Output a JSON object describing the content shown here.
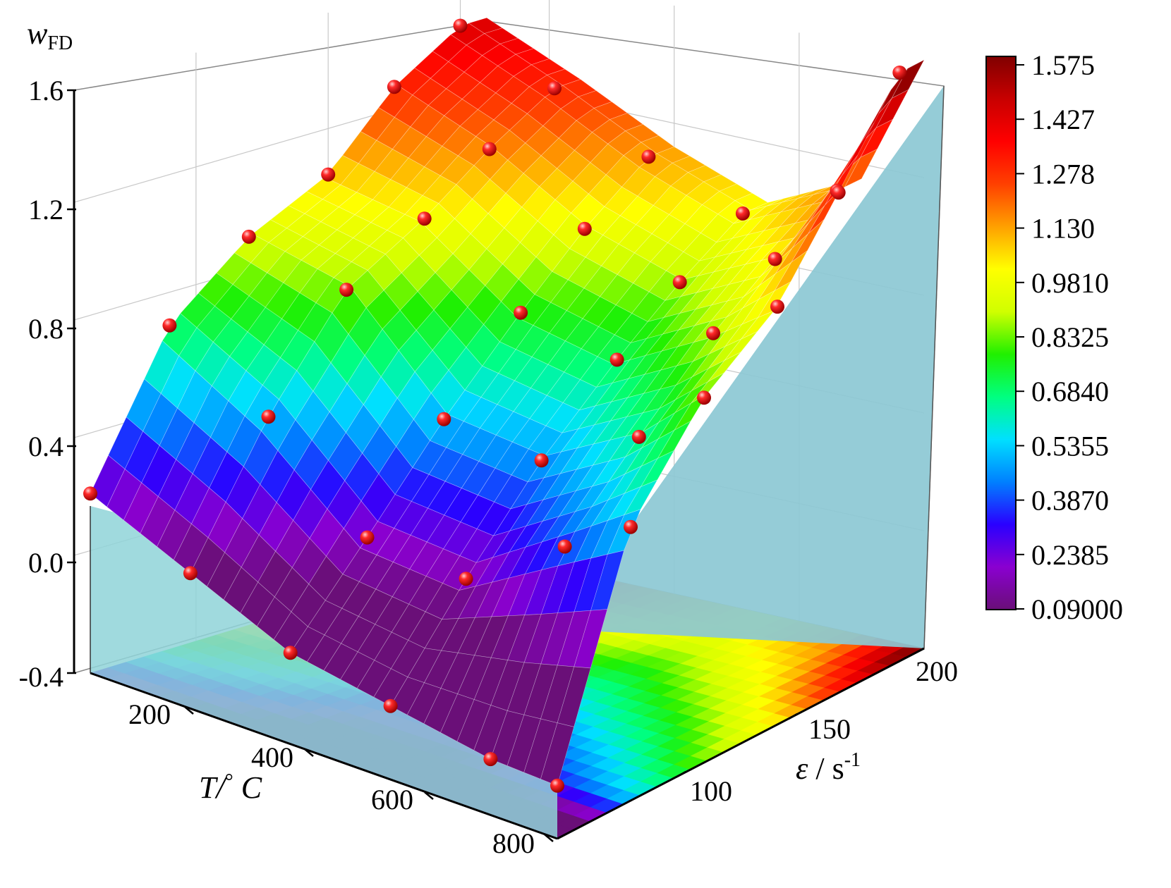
{
  "chart_data": {
    "type": "surface3d",
    "z_axis": {
      "label_main": "w",
      "label_sub": "FD",
      "ticks": [
        "1.6",
        "1.2",
        "0.8",
        "0.4",
        "0.0",
        "-0.4"
      ],
      "range": [
        -0.4,
        1.6
      ]
    },
    "x_axis": {
      "label_main": "T/",
      "label_degree": "°",
      "label_unit": " C",
      "ticks": [
        "200",
        "400",
        "600",
        "800"
      ],
      "range": [
        100,
        800
      ]
    },
    "y_axis": {
      "label_main": "ε",
      "label_unit": " / s",
      "label_sup": "-1",
      "ticks": [
        "100",
        "150",
        "200"
      ],
      "range": [
        60,
        210
      ]
    },
    "colorbar": {
      "labels": [
        "1.575",
        "1.427",
        "1.278",
        "1.130",
        "0.9810",
        "0.8325",
        "0.6840",
        "0.5355",
        "0.3870",
        "0.2385",
        "0.09000"
      ],
      "min": 0.09,
      "max": 1.575,
      "colors": [
        "#6a0f78",
        "#8a00d0",
        "#2a00ff",
        "#0080ff",
        "#00e0ff",
        "#00ff80",
        "#20f000",
        "#d0ff00",
        "#ffff00",
        "#ffa000",
        "#ff4000",
        "#ff0000",
        "#c80000",
        "#800000"
      ]
    },
    "data_points": [
      {
        "T": 100,
        "rate": 60,
        "w": 0.21
      },
      {
        "T": 250,
        "rate": 60,
        "w": 0.06
      },
      {
        "T": 400,
        "rate": 60,
        "w": -0.09
      },
      {
        "T": 550,
        "rate": 60,
        "w": -0.15
      },
      {
        "T": 700,
        "rate": 60,
        "w": -0.21
      },
      {
        "T": 800,
        "rate": 60,
        "w": -0.22
      },
      {
        "T": 100,
        "rate": 90,
        "w": 0.7
      },
      {
        "T": 250,
        "rate": 90,
        "w": 0.5
      },
      {
        "T": 400,
        "rate": 90,
        "w": 0.2
      },
      {
        "T": 550,
        "rate": 90,
        "w": 0.17
      },
      {
        "T": 700,
        "rate": 90,
        "w": 0.39
      },
      {
        "T": 800,
        "rate": 90,
        "w": 0.53
      },
      {
        "T": 100,
        "rate": 120,
        "w": 0.92
      },
      {
        "T": 250,
        "rate": 120,
        "w": 0.84
      },
      {
        "T": 400,
        "rate": 120,
        "w": 0.5
      },
      {
        "T": 550,
        "rate": 120,
        "w": 0.46
      },
      {
        "T": 700,
        "rate": 120,
        "w": 0.64
      },
      {
        "T": 800,
        "rate": 120,
        "w": 0.84
      },
      {
        "T": 100,
        "rate": 150,
        "w": 1.05
      },
      {
        "T": 250,
        "rate": 150,
        "w": 0.99
      },
      {
        "T": 400,
        "rate": 150,
        "w": 0.76
      },
      {
        "T": 550,
        "rate": 150,
        "w": 0.69
      },
      {
        "T": 700,
        "rate": 150,
        "w": 0.87
      },
      {
        "T": 800,
        "rate": 150,
        "w": 1.02
      },
      {
        "T": 100,
        "rate": 175,
        "w": 1.28
      },
      {
        "T": 250,
        "rate": 175,
        "w": 1.15
      },
      {
        "T": 400,
        "rate": 175,
        "w": 0.96
      },
      {
        "T": 550,
        "rate": 175,
        "w": 0.86
      },
      {
        "T": 700,
        "rate": 175,
        "w": 1.02
      },
      {
        "T": 800,
        "rate": 175,
        "w": 1.3
      },
      {
        "T": 100,
        "rate": 200,
        "w": 1.42
      },
      {
        "T": 250,
        "rate": 200,
        "w": 1.28
      },
      {
        "T": 400,
        "rate": 200,
        "w": 1.12
      },
      {
        "T": 550,
        "rate": 200,
        "w": 1.0
      },
      {
        "T": 700,
        "rate": 200,
        "w": 1.15
      },
      {
        "T": 800,
        "rate": 200,
        "w": 1.6
      }
    ],
    "grid": true,
    "legend": "colorbar-right"
  }
}
